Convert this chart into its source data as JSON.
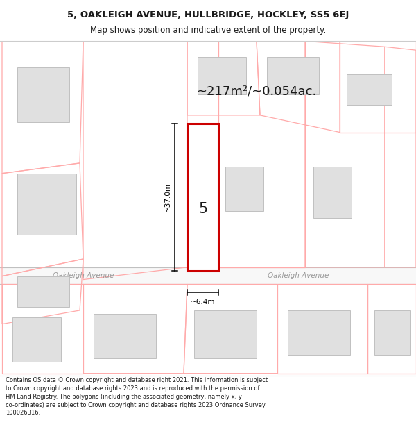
{
  "title_line1": "5, OAKLEIGH AVENUE, HULLBRIDGE, HOCKLEY, SS5 6EJ",
  "title_line2": "Map shows position and indicative extent of the property.",
  "area_text": "~217m²/~0.054ac.",
  "label_5": "5",
  "dim_height": "~37.0m",
  "dim_width": "~6.4m",
  "road_name_left": "Oakleigh Avenue",
  "road_name_right": "Oakleigh Avenue",
  "footer_text": "Contains OS data © Crown copyright and database right 2021. This information is subject\nto Crown copyright and database rights 2023 and is reproduced with the permission of\nHM Land Registry. The polygons (including the associated geometry, namely x, y\nco-ordinates) are subject to Crown copyright and database rights 2023 Ordnance Survey\n100026316.",
  "bg_color": "#ffffff",
  "map_bg": "#ffffff",
  "plot_color": "#cc0000",
  "building_fill": "#e0e0e0",
  "building_edge": "#c0c0c0",
  "plot_outline_color": "#ffaaaa",
  "dim_line_color": "#000000",
  "text_color": "#1a1a1a",
  "road_text_color": "#999999",
  "title_border": "#cccccc",
  "footer_border": "#cccccc"
}
